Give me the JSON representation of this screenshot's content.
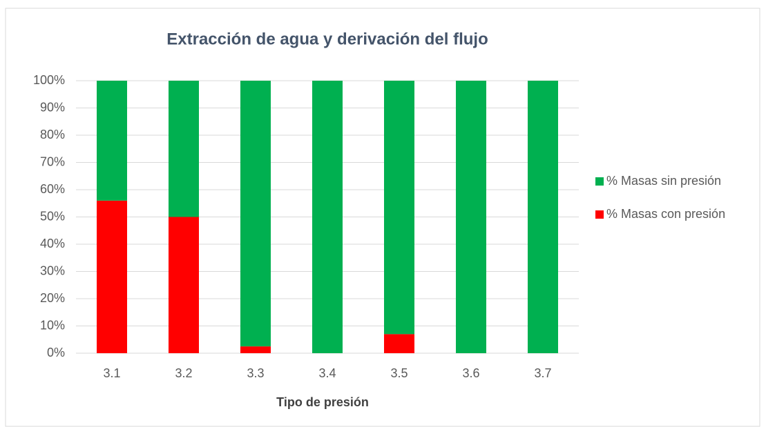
{
  "chart_data": {
    "type": "stacked_bar",
    "title": "Extracción de agua y derivación del flujo",
    "x_label": "Tipo de presión",
    "categories": [
      "3.1",
      "3.2",
      "3.3",
      "3.4",
      "3.5",
      "3.6",
      "3.7"
    ],
    "series": [
      {
        "name": "% Masas con presión",
        "color": "#ff0000",
        "values": [
          56,
          50,
          2.5,
          0,
          7,
          0,
          0
        ]
      },
      {
        "name": "% Masas sin presión",
        "color": "#00b050",
        "values": [
          44,
          50,
          97.5,
          100,
          93,
          100,
          100
        ]
      }
    ],
    "ylim": [
      0,
      100
    ],
    "yticks": [
      {
        "value": 0,
        "label": "0%"
      },
      {
        "value": 10,
        "label": "10%"
      },
      {
        "value": 20,
        "label": "20%"
      },
      {
        "value": 30,
        "label": "30%"
      },
      {
        "value": 40,
        "label": "40%"
      },
      {
        "value": 50,
        "label": "50%"
      },
      {
        "value": 60,
        "label": "60%"
      },
      {
        "value": 70,
        "label": "70%"
      },
      {
        "value": 80,
        "label": "80%"
      },
      {
        "value": 90,
        "label": "90%"
      },
      {
        "value": 100,
        "label": "100%"
      }
    ],
    "grid": true,
    "legend": "right"
  }
}
